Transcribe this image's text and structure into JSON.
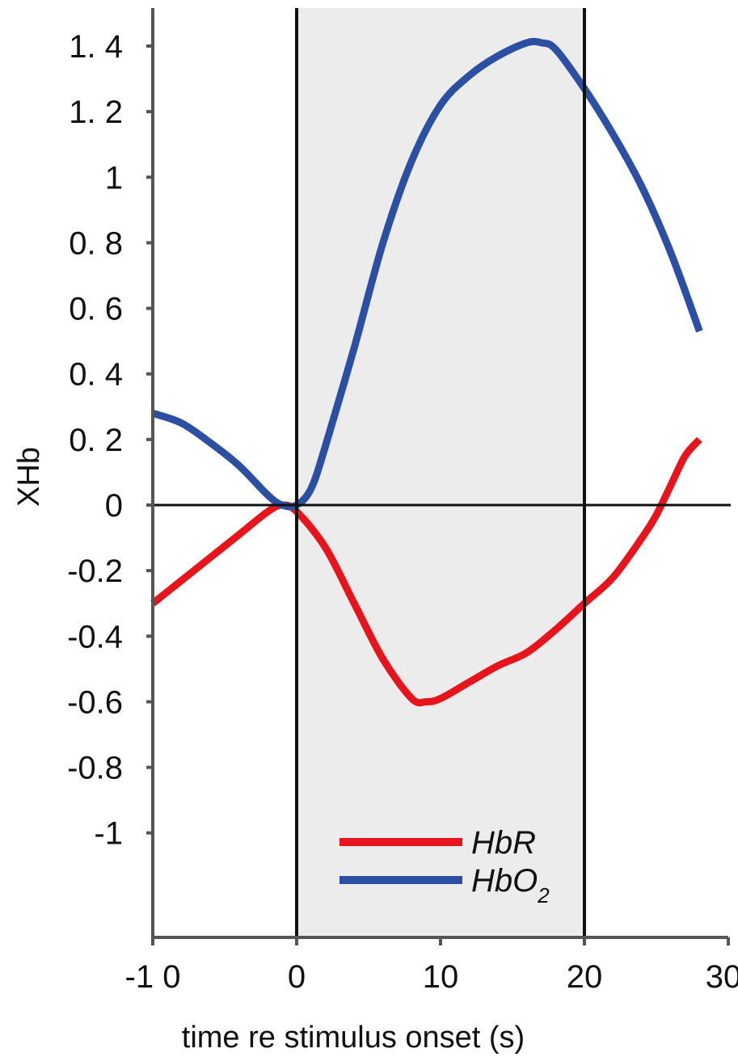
{
  "chart_data": {
    "type": "line",
    "title": "",
    "xlabel": "time re stimulus onset (s)",
    "ylabel": "XHb",
    "xlim": [
      -10,
      30
    ],
    "ylim": [
      -1.2,
      1.5
    ],
    "x_ticks": [
      -10,
      0,
      10,
      20,
      30
    ],
    "x_tick_labels": [
      "-1 0",
      "0",
      "10",
      "20",
      "30"
    ],
    "y_ticks": [
      1.4,
      1.2,
      1,
      0.8,
      0.6,
      0.4,
      0.2,
      0,
      -0.2,
      -0.4,
      -0.6,
      -0.8,
      -1
    ],
    "y_tick_labels": [
      "1. 4",
      "1. 2",
      "1",
      "0. 8",
      "0. 6",
      "0. 4",
      "0. 2",
      "0",
      "-0.2",
      "-0.4",
      "-0.6",
      "-0.8",
      "-1"
    ],
    "stimulus_window": [
      0,
      20
    ],
    "stimulus_shade_color": "#ececec",
    "legend_position": "bottom-center",
    "series": [
      {
        "name": "HbR",
        "color": "#e8141c",
        "x": [
          -10,
          -8,
          -6,
          -4,
          -2,
          -1,
          0,
          2,
          4,
          6,
          8,
          9,
          10,
          12,
          14,
          16,
          18,
          20,
          22,
          24,
          25,
          26,
          27,
          28
        ],
        "y": [
          -0.3,
          -0.23,
          -0.16,
          -0.09,
          -0.02,
          0.0,
          -0.02,
          -0.13,
          -0.3,
          -0.47,
          -0.59,
          -0.6,
          -0.59,
          -0.54,
          -0.49,
          -0.45,
          -0.38,
          -0.3,
          -0.22,
          -0.1,
          -0.03,
          0.06,
          0.15,
          0.2
        ]
      },
      {
        "name": "HbO2",
        "name_main": "HbO",
        "name_subscript": "2",
        "color": "#2b4fa3",
        "x": [
          -10,
          -8,
          -6,
          -4,
          -2,
          -1,
          0,
          1,
          2,
          4,
          6,
          8,
          10,
          12,
          14,
          16,
          17,
          18,
          20,
          22,
          24,
          26,
          28
        ],
        "y": [
          0.28,
          0.25,
          0.19,
          0.12,
          0.03,
          0.0,
          0.0,
          0.05,
          0.18,
          0.48,
          0.8,
          1.05,
          1.22,
          1.31,
          1.37,
          1.41,
          1.41,
          1.39,
          1.27,
          1.13,
          0.97,
          0.77,
          0.53
        ]
      }
    ]
  }
}
